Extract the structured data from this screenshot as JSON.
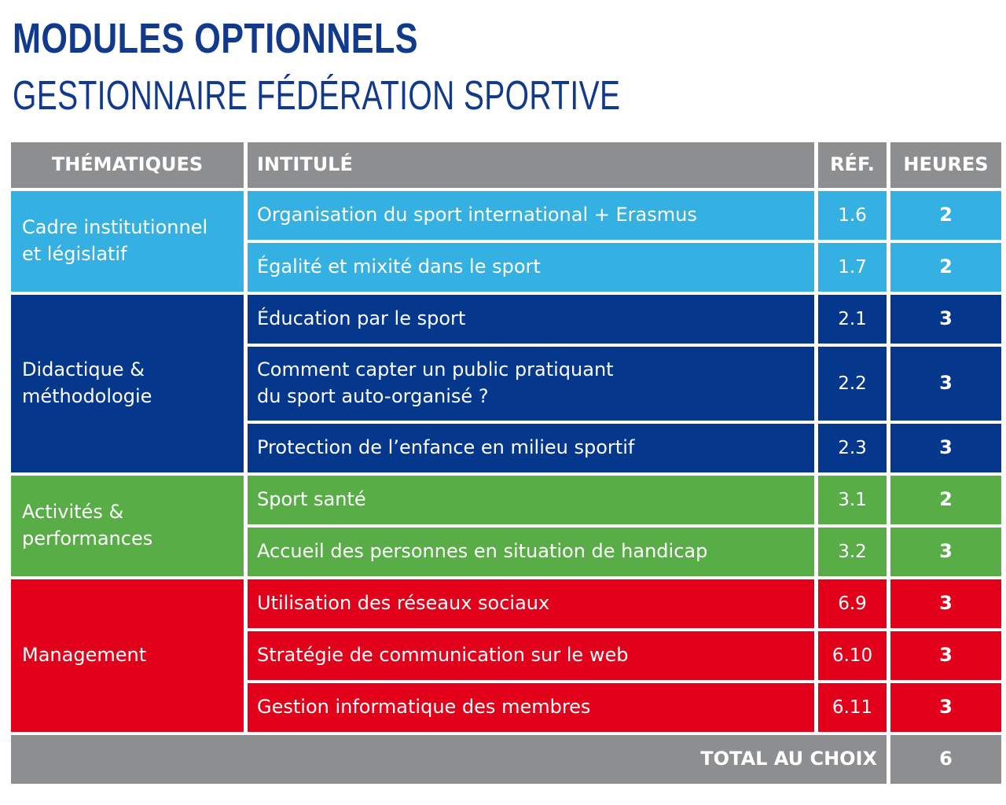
{
  "header": {
    "title": "MODULES OPTIONNELS",
    "subtitle": "GESTIONNAIRE FÉDÉRATION SPORTIVE"
  },
  "table": {
    "columns": [
      "THÉMATIQUES",
      "INTITULÉ",
      "RÉF.",
      "HEURES"
    ],
    "groups": [
      {
        "theme": "Cadre institutionnel\net législatif",
        "color": "#35b0e2",
        "rows": [
          {
            "title": "Organisation du sport international + Erasmus",
            "ref": "1.6",
            "hours": "2"
          },
          {
            "title": "Égalité et mixité dans le sport",
            "ref": "1.7",
            "hours": "2"
          }
        ]
      },
      {
        "theme": "Didactique &\nméthodologie",
        "color": "#05378c",
        "rows": [
          {
            "title": "Éducation par le sport",
            "ref": "2.1",
            "hours": "3"
          },
          {
            "title": "Comment capter un public pratiquant\ndu sport auto-organisé ?",
            "ref": "2.2",
            "hours": "3"
          },
          {
            "title": "Protection de l’enfance en milieu sportif",
            "ref": "2.3",
            "hours": "3"
          }
        ]
      },
      {
        "theme": "Activités &\nperformances",
        "color": "#58ad47",
        "rows": [
          {
            "title": "Sport santé",
            "ref": "3.1",
            "hours": "2"
          },
          {
            "title": "Accueil des personnes en situation de handicap",
            "ref": "3.2",
            "hours": "3"
          }
        ]
      },
      {
        "theme": "Management",
        "color": "#e2001b",
        "rows": [
          {
            "title": "Utilisation des réseaux sociaux",
            "ref": "6.9",
            "hours": "3"
          },
          {
            "title": "Stratégie de communication sur le web",
            "ref": "6.10",
            "hours": "3"
          },
          {
            "title": "Gestion informatique des membres",
            "ref": "6.11",
            "hours": "3"
          }
        ]
      }
    ],
    "total": {
      "label": "TOTAL AU CHOIX",
      "value": "6"
    }
  },
  "colors": {
    "title": "#123a8c",
    "header_bg": "#8c8e90"
  }
}
